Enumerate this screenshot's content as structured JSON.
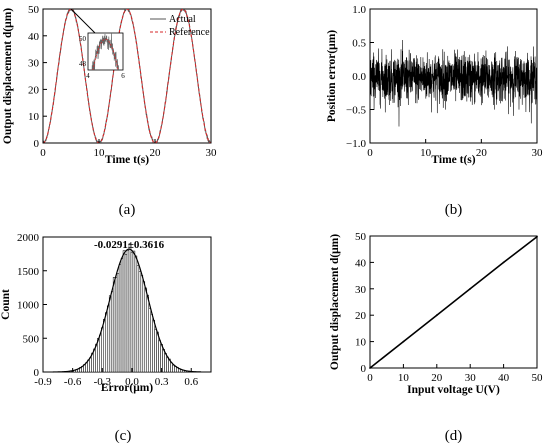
{
  "chart_data": [
    {
      "type": "line",
      "caption": "(a)",
      "xlabel": "Time t(s)",
      "ylabel": "Output displacement d(μm)",
      "xlim": [
        0,
        30
      ],
      "ylim": [
        0,
        50
      ],
      "xticks": [
        "0",
        "10",
        "20",
        "30"
      ],
      "yticks": [
        "0",
        "10",
        "20",
        "30",
        "40",
        "50"
      ],
      "legend_position": "top-right",
      "series": [
        {
          "name": "Actual",
          "color": "#555555",
          "style": "solid",
          "function": "25 - 25*cos(2*pi*(t-0)/10)"
        },
        {
          "name": "Reference",
          "color": "#d62728",
          "style": "dashed",
          "function": "25 - 25*cos(2*pi*(t-0)/10)"
        }
      ],
      "x": [
        0,
        2.5,
        5,
        7.5,
        10,
        12.5,
        15,
        17.5,
        20,
        22.5,
        25,
        27.5,
        30
      ],
      "y_reference": [
        0,
        25,
        50,
        25,
        0,
        25,
        50,
        25,
        0,
        25,
        50,
        25,
        0
      ],
      "inset": {
        "xlim": [
          4,
          6
        ],
        "ylim": [
          47.5,
          50.5
        ],
        "xticks": [
          "4",
          "6"
        ],
        "yticks": [
          "48",
          "50"
        ]
      }
    },
    {
      "type": "line",
      "caption": "(b)",
      "xlabel": "Time t(s)",
      "ylabel": "Position error(μm)",
      "xlim": [
        0,
        30
      ],
      "ylim": [
        -1.0,
        1.0
      ],
      "xticks": [
        "0",
        "10",
        "20",
        "30"
      ],
      "yticks": [
        "1.0",
        "0.5",
        "0.0",
        "−0.5",
        "−1.0"
      ],
      "series": [
        {
          "name": "",
          "color": "#000000",
          "style": "dense noise",
          "mean": -0.03,
          "std": 0.18,
          "range": [
            -0.8,
            0.75
          ]
        }
      ]
    },
    {
      "type": "bar",
      "caption": "(c)",
      "xlabel": "Error(μm)",
      "ylabel": "Count",
      "annotation": "-0.0291±0.3616",
      "xlim": [
        -0.9,
        0.8
      ],
      "ylim": [
        0,
        2000
      ],
      "xticks": [
        "-0.9",
        "-0.6",
        "-0.3",
        "0.0",
        "0.3",
        "0.6"
      ],
      "yticks": [
        "0",
        "500",
        "1000",
        "1500",
        "2000"
      ],
      "histogram": {
        "mean": -0.0291,
        "peak_count": 1820,
        "std_fit": 0.19,
        "bin_width": 0.02,
        "fit_curve": "gaussian"
      }
    },
    {
      "type": "line",
      "caption": "(d)",
      "xlabel": "Input voltage U(V)",
      "ylabel": "Output displacement d(μm)",
      "xlim": [
        0,
        50
      ],
      "ylim": [
        0,
        50
      ],
      "xticks": [
        "0",
        "10",
        "20",
        "30",
        "40",
        "50"
      ],
      "yticks": [
        "0",
        "10",
        "20",
        "30",
        "40",
        "50"
      ],
      "series": [
        {
          "name": "",
          "color": "#000000",
          "x": [
            0,
            10,
            20,
            30,
            40,
            50
          ],
          "y": [
            0,
            10,
            20,
            30,
            40,
            49.7
          ]
        }
      ]
    }
  ]
}
